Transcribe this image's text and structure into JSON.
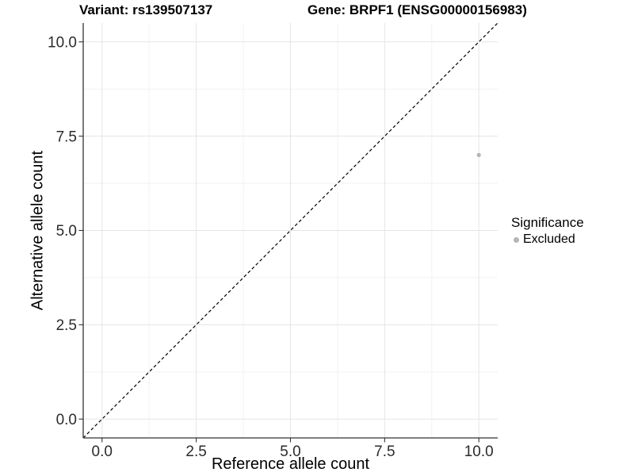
{
  "chart_data": {
    "type": "scatter",
    "title_left": "Variant: rs139507137",
    "title_right": "Gene: BRPF1 (ENSG00000156983)",
    "xlabel": "Reference allele count",
    "ylabel": "Alternative allele count",
    "xlim": [
      -0.5,
      10.5
    ],
    "ylim": [
      -0.5,
      10.5
    ],
    "x_ticks": [
      0.0,
      2.5,
      5.0,
      7.5,
      10.0
    ],
    "y_ticks": [
      0.0,
      2.5,
      5.0,
      7.5,
      10.0
    ],
    "x_minor_ticks": [
      1.25,
      3.75,
      6.25,
      8.75
    ],
    "y_minor_ticks": [
      1.25,
      3.75,
      6.25,
      8.75
    ],
    "tick_decimals": 1,
    "grid": "major+minor",
    "reference_line": {
      "type": "identity",
      "linetype": "dashed",
      "color": "#000000"
    },
    "series": [
      {
        "name": "Excluded",
        "color": "#b5b5b5",
        "points": [
          {
            "x": 10,
            "y": 7
          }
        ]
      }
    ],
    "legend": {
      "title": "Significance",
      "position": "right",
      "items": [
        {
          "label": "Excluded",
          "color": "#b5b5b5"
        }
      ]
    }
  },
  "colors": {
    "background": "#ffffff",
    "axis_line": "#333333",
    "tick_mark": "#333333",
    "grid_major": "#e5e5e5",
    "grid_minor": "#f2f2f2",
    "tick_text": "#2b2b2b",
    "point": "#b5b5b5"
  }
}
